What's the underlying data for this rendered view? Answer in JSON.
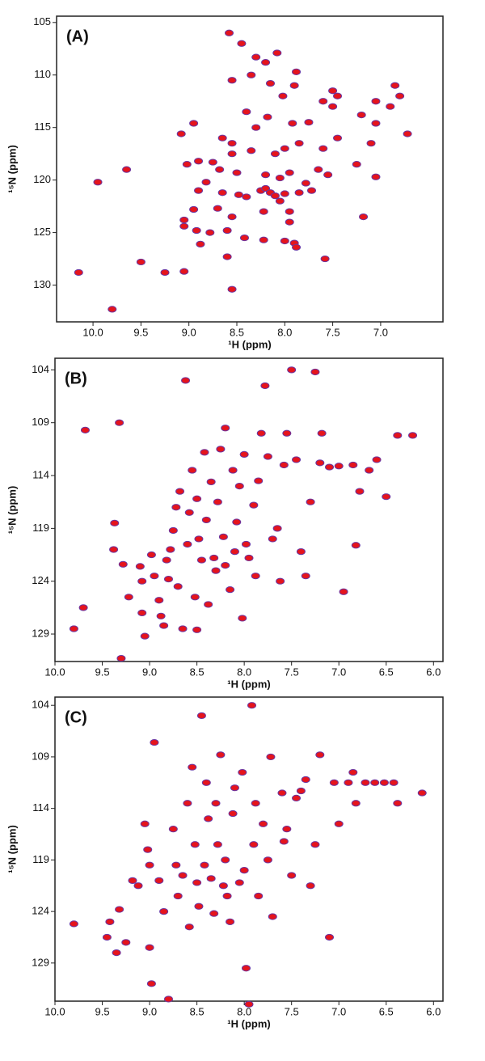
{
  "chart_data": [
    {
      "type": "scatter",
      "title": "(A)",
      "x_label": "¹H (ppm)",
      "y_label": "¹⁵N (ppm)",
      "color": "#e5141c",
      "edge_color": "#6b35a0",
      "xlim": [
        10.38,
        6.35
      ],
      "ylim": [
        133.5,
        104.4
      ],
      "xticks": [
        {
          "value": 10,
          "label": "10.0"
        },
        9.5,
        {
          "value": 9,
          "label": "9.0"
        },
        8.5,
        {
          "value": 8,
          "label": "8.0"
        },
        7.5,
        {
          "value": 7,
          "label": "7.0"
        }
      ],
      "yticks": [
        105,
        110,
        115,
        120,
        125,
        130
      ],
      "x": [
        8.58,
        8.45,
        8.3,
        8.2,
        8.08,
        8.55,
        8.35,
        8.15,
        7.88,
        7.9,
        7.5,
        7.45,
        7.6,
        7.5,
        7.05,
        6.8,
        6.85,
        6.9,
        7.2,
        7.05,
        6.72,
        8.02,
        8.18,
        8.3,
        8.4,
        8.65,
        8.55,
        8.55,
        8.35,
        8.1,
        8.0,
        7.92,
        7.75,
        7.85,
        7.6,
        7.45,
        7.1,
        7.25,
        7.05,
        9.08,
        8.95,
        8.9,
        8.75,
        9.02,
        8.68,
        8.5,
        8.2,
        8.05,
        7.95,
        7.65,
        7.55,
        7.78,
        7.72,
        9.95,
        9.65,
        8.82,
        8.9,
        8.65,
        8.48,
        8.4,
        8.25,
        8.2,
        8.15,
        8.1,
        8.05,
        8.0,
        7.85,
        8.95,
        8.7,
        8.55,
        8.22,
        7.95,
        7.95,
        7.18,
        9.05,
        9.05,
        8.92,
        8.78,
        8.6,
        8.42,
        8.22,
        8.0,
        7.9,
        7.88,
        8.6,
        8.88,
        7.58,
        9.5,
        9.25,
        9.05,
        10.15,
        8.55,
        9.8
      ],
      "values": [
        106,
        107,
        108.3,
        108.8,
        107.9,
        110.5,
        110,
        110.8,
        109.7,
        111,
        111.5,
        112,
        112.5,
        113,
        112.5,
        112,
        111,
        113,
        113.8,
        114.6,
        115.6,
        112,
        114,
        115,
        113.5,
        116,
        116.5,
        117.5,
        117.2,
        117.5,
        117,
        114.6,
        114.5,
        116.5,
        117,
        116,
        116.5,
        118.5,
        119.7,
        115.6,
        114.6,
        118.2,
        118.3,
        118.5,
        119,
        119.3,
        119.5,
        119.8,
        119.3,
        119,
        119.5,
        120.3,
        121,
        120.2,
        119,
        120.2,
        121,
        121.2,
        121.4,
        121.6,
        121,
        120.8,
        121.2,
        121.5,
        122,
        121.3,
        121.2,
        122.8,
        122.7,
        123.5,
        123,
        123,
        124,
        123.5,
        123.8,
        124.4,
        124.8,
        125,
        124.8,
        125.5,
        125.7,
        125.8,
        126,
        126.4,
        127.3,
        126.1,
        127.5,
        127.8,
        128.8,
        128.7,
        128.8,
        130.4,
        132.3
      ]
    },
    {
      "type": "scatter",
      "title": "(B)",
      "x_label": "¹H (ppm)",
      "y_label": "¹⁵N (ppm)",
      "color": "#e5141c",
      "edge_color": "#6b35a0",
      "xlim": [
        10.0,
        5.9
      ],
      "ylim": [
        131.6,
        102.9
      ],
      "xticks": [
        {
          "value": 10,
          "label": "10.0"
        },
        9.5,
        {
          "value": 9,
          "label": "9.0"
        },
        8.5,
        {
          "value": 8,
          "label": "8.0"
        },
        7.5,
        {
          "value": 7,
          "label": "7.0"
        },
        6.5,
        {
          "value": 6,
          "label": "6.0"
        }
      ],
      "yticks": [
        104,
        109,
        114,
        119,
        124,
        129
      ],
      "x": [
        9.8,
        9.7,
        9.68,
        9.38,
        9.37,
        9.32,
        9.3,
        9.28,
        9.22,
        9.1,
        9.08,
        9.08,
        9.05,
        8.98,
        8.95,
        8.9,
        8.88,
        8.85,
        8.82,
        8.8,
        8.78,
        8.75,
        8.72,
        8.7,
        8.68,
        8.65,
        8.62,
        8.6,
        8.58,
        8.55,
        8.5,
        8.52,
        8.5,
        8.48,
        8.45,
        8.42,
        8.4,
        8.38,
        8.35,
        8.32,
        8.3,
        8.28,
        8.25,
        8.22,
        8.2,
        8.2,
        8.15,
        8.12,
        8.1,
        8.08,
        8.05,
        8.02,
        8.0,
        7.98,
        7.95,
        7.9,
        7.88,
        7.85,
        7.82,
        7.78,
        7.75,
        7.7,
        7.65,
        7.62,
        7.58,
        7.55,
        7.5,
        7.45,
        7.4,
        7.35,
        7.3,
        7.25,
        7.2,
        7.18,
        7.1,
        7.0,
        6.95,
        6.85,
        6.82,
        6.78,
        6.68,
        6.6,
        6.5,
        6.38,
        6.22
      ],
      "values": [
        128.5,
        126.5,
        109.7,
        121,
        118.5,
        109,
        131.3,
        122.4,
        125.5,
        122.6,
        124,
        127,
        129.2,
        121.5,
        123.5,
        125.8,
        127.3,
        128.2,
        122,
        123.8,
        121,
        119.2,
        117,
        124.5,
        115.5,
        128.5,
        105,
        120.5,
        117.5,
        113.5,
        116.2,
        125.5,
        128.6,
        120,
        122,
        111.8,
        118.2,
        126.2,
        114.6,
        121.8,
        123,
        116.5,
        111.5,
        119.8,
        109.5,
        122.5,
        124.8,
        113.5,
        121.2,
        118.4,
        115,
        127.5,
        112,
        120.5,
        121.8,
        116.8,
        123.5,
        114.5,
        110,
        105.5,
        112.2,
        120,
        119,
        124,
        113,
        110,
        104,
        112.5,
        121.2,
        123.5,
        116.5,
        104.2,
        112.8,
        110,
        113.2,
        113.1,
        125,
        113,
        120.6,
        115.5,
        113.5,
        112.5,
        116,
        110.2,
        110.2
      ]
    },
    {
      "type": "scatter",
      "title": "(C)",
      "x_label": "¹H (ppm)",
      "y_label": "¹⁵N (ppm)",
      "color": "#e5141c",
      "edge_color": "#6b35a0",
      "xlim": [
        10.0,
        5.9
      ],
      "ylim": [
        132.7,
        103.2
      ],
      "xticks": [
        {
          "value": 10,
          "label": "10.0"
        },
        9.5,
        {
          "value": 9,
          "label": "9.0"
        },
        8.5,
        {
          "value": 8,
          "label": "8.0"
        },
        7.5,
        {
          "value": 7,
          "label": "7.0"
        },
        6.5,
        {
          "value": 6,
          "label": "6.0"
        }
      ],
      "yticks": [
        104,
        109,
        114,
        119,
        124,
        129
      ],
      "x": [
        9.8,
        9.45,
        9.42,
        9.35,
        9.32,
        9.25,
        9.18,
        9.12,
        9.05,
        9.02,
        9.0,
        9.0,
        8.98,
        8.95,
        8.9,
        8.85,
        8.8,
        8.75,
        8.72,
        8.7,
        8.65,
        8.6,
        8.58,
        8.55,
        8.52,
        8.5,
        8.48,
        8.45,
        8.42,
        8.4,
        8.38,
        8.35,
        8.32,
        8.3,
        8.28,
        8.25,
        8.22,
        8.2,
        8.18,
        8.15,
        8.12,
        8.1,
        8.05,
        8.02,
        8.0,
        7.98,
        7.95,
        7.92,
        7.9,
        7.88,
        7.85,
        7.8,
        7.75,
        7.72,
        7.7,
        7.6,
        7.58,
        7.55,
        7.5,
        7.45,
        7.4,
        7.35,
        7.3,
        7.25,
        7.2,
        7.1,
        7.05,
        7.0,
        6.9,
        6.85,
        6.82,
        6.72,
        6.62,
        6.52,
        6.42,
        6.38,
        6.12
      ],
      "values": [
        125.2,
        126.5,
        125,
        128,
        123.8,
        127,
        121,
        121.5,
        115.5,
        118,
        119.5,
        127.5,
        131,
        107.6,
        121,
        124,
        132.5,
        116,
        119.5,
        122.5,
        120.5,
        113.5,
        125.5,
        110,
        117.5,
        121.2,
        123.5,
        105,
        119.5,
        111.5,
        115,
        120.8,
        124.2,
        113.5,
        117.5,
        108.8,
        121.5,
        119,
        122.5,
        125,
        114.5,
        112,
        121.2,
        110.5,
        120,
        129.5,
        133,
        104,
        117.5,
        113.5,
        122.5,
        115.5,
        119,
        109,
        124.5,
        112.5,
        117.2,
        116,
        120.5,
        113,
        112.3,
        111.2,
        121.5,
        117.5,
        108.8,
        126.5,
        111.5,
        115.5,
        111.5,
        110.5,
        113.5,
        111.5,
        111.5,
        111.5,
        111.5,
        113.5,
        112.5
      ]
    }
  ]
}
